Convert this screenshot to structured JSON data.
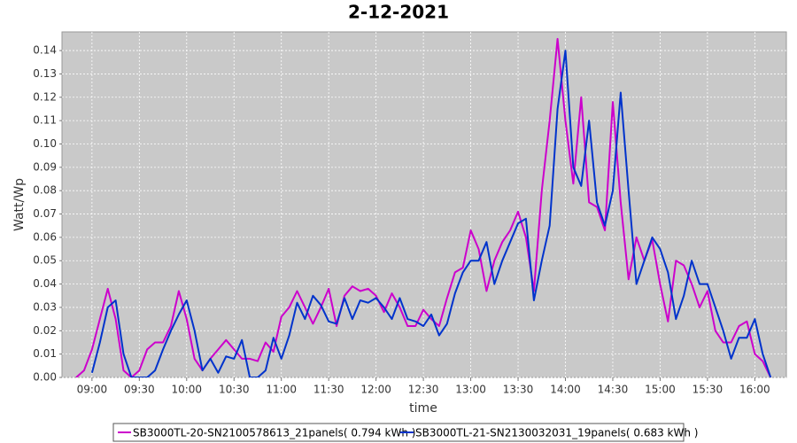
{
  "chart_data": {
    "type": "line",
    "title": "2-12-2021",
    "x_label": "time",
    "y_label": "Watt/Wp",
    "x": [
      "08:50",
      "08:55",
      "09:00",
      "09:05",
      "09:10",
      "09:15",
      "09:20",
      "09:25",
      "09:30",
      "09:35",
      "09:40",
      "09:45",
      "09:50",
      "09:55",
      "10:00",
      "10:05",
      "10:10",
      "10:15",
      "10:20",
      "10:25",
      "10:30",
      "10:35",
      "10:40",
      "10:45",
      "10:50",
      "10:55",
      "11:00",
      "11:05",
      "11:10",
      "11:15",
      "11:20",
      "11:25",
      "11:30",
      "11:35",
      "11:40",
      "11:45",
      "11:50",
      "11:55",
      "12:00",
      "12:05",
      "12:10",
      "12:15",
      "12:20",
      "12:25",
      "12:30",
      "12:35",
      "12:40",
      "12:45",
      "12:50",
      "12:55",
      "13:00",
      "13:05",
      "13:10",
      "13:15",
      "13:20",
      "13:25",
      "13:30",
      "13:35",
      "13:40",
      "13:45",
      "13:50",
      "13:55",
      "14:00",
      "14:05",
      "14:10",
      "14:15",
      "14:20",
      "14:25",
      "14:30",
      "14:35",
      "14:40",
      "14:45",
      "14:50",
      "14:55",
      "15:00",
      "15:05",
      "15:10",
      "15:15",
      "15:20",
      "15:25",
      "15:30",
      "15:35",
      "15:40",
      "15:45",
      "15:50",
      "15:55",
      "16:00",
      "16:05",
      "16:10"
    ],
    "series": [
      {
        "name": "SB3000TL-20-SN2100578613_21panels( 0.794 kWh )",
        "color": "#cc00cc",
        "values": [
          0,
          0.003,
          0.012,
          0.025,
          0.038,
          0.025,
          0.003,
          0,
          0.003,
          0.012,
          0.015,
          0.015,
          0.022,
          0.037,
          0.025,
          0.008,
          0.003,
          0.008,
          0.012,
          0.016,
          0.012,
          0.008,
          0.008,
          0.007,
          0.015,
          0.011,
          0.026,
          0.03,
          0.037,
          0.03,
          0.023,
          0.03,
          0.038,
          0.022,
          0.035,
          0.039,
          0.037,
          0.038,
          0.035,
          0.028,
          0.036,
          0.03,
          0.022,
          0.022,
          0.029,
          0.025,
          0.022,
          0.034,
          0.045,
          0.047,
          0.063,
          0.055,
          0.037,
          0.05,
          0.058,
          0.063,
          0.071,
          0.06,
          0.037,
          0.08,
          0.11,
          0.145,
          0.11,
          0.083,
          0.12,
          0.075,
          0.073,
          0.063,
          0.118,
          0.075,
          0.042,
          0.06,
          0.05,
          0.059,
          0.04,
          0.024,
          0.05,
          0.048,
          0.04,
          0.03,
          0.037,
          0.02,
          0.015,
          0.015,
          0.022,
          0.024,
          0.01,
          0.007,
          0
        ]
      },
      {
        "name": "SB3000TL-21-SN2130032031_19panels( 0.683 kWh )",
        "color": "#0033cc",
        "values": [
          null,
          null,
          0.002,
          0.015,
          0.03,
          0.033,
          0.01,
          0,
          0,
          0,
          0.003,
          0.012,
          0.02,
          0.027,
          0.033,
          0.02,
          0.003,
          0.008,
          0.002,
          0.009,
          0.008,
          0.016,
          0,
          0,
          0.003,
          0.017,
          0.008,
          0.018,
          0.032,
          0.025,
          0.035,
          0.031,
          0.024,
          0.023,
          0.034,
          0.025,
          0.033,
          0.032,
          0.034,
          0.03,
          0.025,
          0.034,
          0.025,
          0.024,
          0.022,
          0.027,
          0.018,
          0.023,
          0.036,
          0.045,
          0.05,
          0.05,
          0.058,
          0.04,
          0.05,
          0.058,
          0.066,
          0.068,
          0.033,
          0.05,
          0.065,
          0.115,
          0.14,
          0.09,
          0.082,
          0.11,
          0.075,
          0.065,
          0.08,
          0.122,
          0.08,
          0.04,
          0.05,
          0.06,
          0.055,
          0.045,
          0.025,
          0.035,
          0.05,
          0.04,
          0.04,
          0.03,
          0.02,
          0.008,
          0.017,
          0.017,
          0.025,
          0.01,
          0
        ]
      }
    ],
    "xlim": [
      "08:41",
      "16:20"
    ],
    "xticks": [
      "09:00",
      "09:30",
      "10:00",
      "10:30",
      "11:00",
      "11:30",
      "12:00",
      "12:30",
      "13:00",
      "13:30",
      "14:00",
      "14:30",
      "15:00",
      "15:30",
      "16:00"
    ],
    "ylim": [
      0,
      0.148
    ],
    "yticks": [
      {
        "value": 0,
        "label": "0.00"
      },
      {
        "value": 0.01,
        "label": "0.01"
      },
      {
        "value": 0.02,
        "label": "0.02"
      },
      {
        "value": 0.03,
        "label": "0.03"
      },
      {
        "value": 0.04,
        "label": "0.04"
      },
      {
        "value": 0.05,
        "label": "0.05"
      },
      {
        "value": 0.06,
        "label": "0.06"
      },
      {
        "value": 0.07,
        "label": "0.07"
      },
      {
        "value": 0.08,
        "label": "0.08"
      },
      {
        "value": 0.09,
        "label": "0.09"
      },
      {
        "value": 0.1,
        "label": "0.10"
      },
      {
        "value": 0.11,
        "label": "0.11"
      },
      {
        "value": 0.12,
        "label": "0.12"
      },
      {
        "value": 0.13,
        "label": "0.13"
      },
      {
        "value": 0.14,
        "label": "0.14"
      }
    ],
    "grid": true
  }
}
